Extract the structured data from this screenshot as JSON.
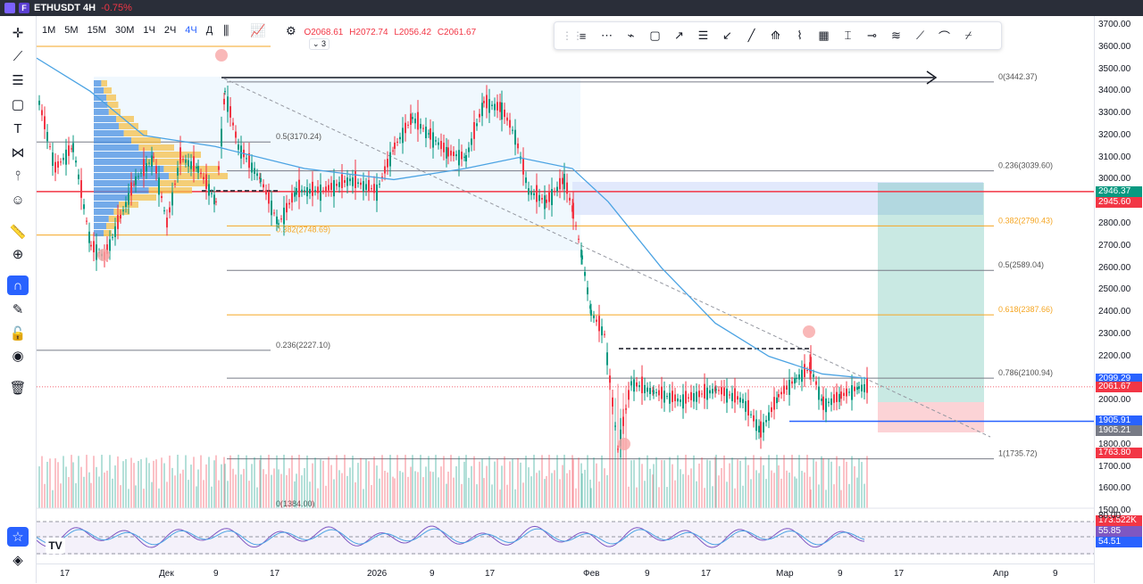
{
  "window": {
    "symbol": "ETHUSDT 4H",
    "change": "-0.75%",
    "badge": "F"
  },
  "intervals": [
    "1М",
    "5М",
    "15М",
    "30М",
    "1Ч",
    "2Ч",
    "4Ч",
    "Д"
  ],
  "active_interval": "4Ч",
  "ohlc": {
    "open": "O2068.61",
    "high": "H2072.74",
    "low": "L2056.42",
    "close": "C2061.67",
    "layers": "3"
  },
  "left_toolbar": [
    {
      "name": "crosshair-icon",
      "glyph": "✛"
    },
    {
      "name": "trendline-icon",
      "glyph": "⟋"
    },
    {
      "name": "fib-icon",
      "glyph": "☰"
    },
    {
      "name": "rectangle-icon",
      "glyph": "▢"
    },
    {
      "name": "text-icon",
      "glyph": "T"
    },
    {
      "name": "pattern-icon",
      "glyph": "⋈"
    },
    {
      "name": "forecast-icon",
      "glyph": "⫯"
    },
    {
      "name": "emoji-icon",
      "glyph": "☺"
    },
    {
      "name": "ruler-icon",
      "glyph": "📏"
    },
    {
      "name": "zoom-icon",
      "glyph": "⊕"
    },
    {
      "name": "magnet-icon",
      "glyph": "∩"
    },
    {
      "name": "lock-drawing-icon",
      "glyph": "✎"
    },
    {
      "name": "lock-icon",
      "glyph": "🔓"
    },
    {
      "name": "eye-icon",
      "glyph": "◉"
    },
    {
      "name": "trash-icon",
      "glyph": "🗑"
    },
    {
      "name": "star-icon",
      "glyph": "☆"
    },
    {
      "name": "layers-icon",
      "glyph": "◈"
    }
  ],
  "draw_toolbar": [
    "≡",
    "⋯",
    "⌁",
    "▢",
    "↗",
    "☰",
    "↙",
    "╱",
    "⟰",
    "⌇",
    "▦",
    "⌶",
    "⊸",
    "≋",
    "⟋",
    "⌒",
    "⌿"
  ],
  "price_scale": {
    "ticks": [
      "3700.00",
      "3600.00",
      "3500.00",
      "3400.00",
      "3300.00",
      "3200.00",
      "3100.00",
      "3000.00",
      "2900.00",
      "2800.00",
      "2700.00",
      "2600.00",
      "2500.00",
      "2400.00",
      "2300.00",
      "2200.00",
      "2100.00",
      "2000.00",
      "1900.00",
      "1800.00",
      "1700.00",
      "1600.00",
      "1500.00"
    ],
    "tags": [
      {
        "label": "2946.37",
        "color": "#089981"
      },
      {
        "label": "2945.60",
        "color": "#f23645"
      },
      {
        "label": "2099.29",
        "color": "#2962ff"
      },
      {
        "label": "2061.67",
        "color": "#f23645"
      },
      {
        "label": "1905.91",
        "color": "#2962ff"
      },
      {
        "label": "1905.21",
        "color": "#787b86"
      },
      {
        "label": "1763.80",
        "color": "#f23645"
      },
      {
        "label": "173.522K",
        "color": "#f23645"
      }
    ],
    "rsi_ticks": [
      "80.00"
    ],
    "rsi_tags": [
      {
        "label": "55.85",
        "color": "#7e57c2"
      },
      {
        "label": "54.51",
        "color": "#2962ff"
      }
    ]
  },
  "fib_right": [
    "0(3442.37)",
    "0.236(3039.60)",
    "0.382(2790.43)",
    "0.5(2589.04)",
    "0.618(2387.66)",
    "0.786(2100.94)",
    "1(1735.72)"
  ],
  "fib_left": [
    "0.5(3170.24)",
    "0.382(2748.69)",
    "0.236(2227.10)",
    "0(1384.00)"
  ],
  "time_axis": [
    "17",
    "Дек",
    "9",
    "17",
    "2026",
    "9",
    "17",
    "Фев",
    "9",
    "17",
    "Мар",
    "9",
    "17",
    "Апр",
    "9"
  ],
  "colors": {
    "up": "#089981",
    "down": "#f23645",
    "ma": "#4ba3e3",
    "accent": "#2962ff"
  }
}
